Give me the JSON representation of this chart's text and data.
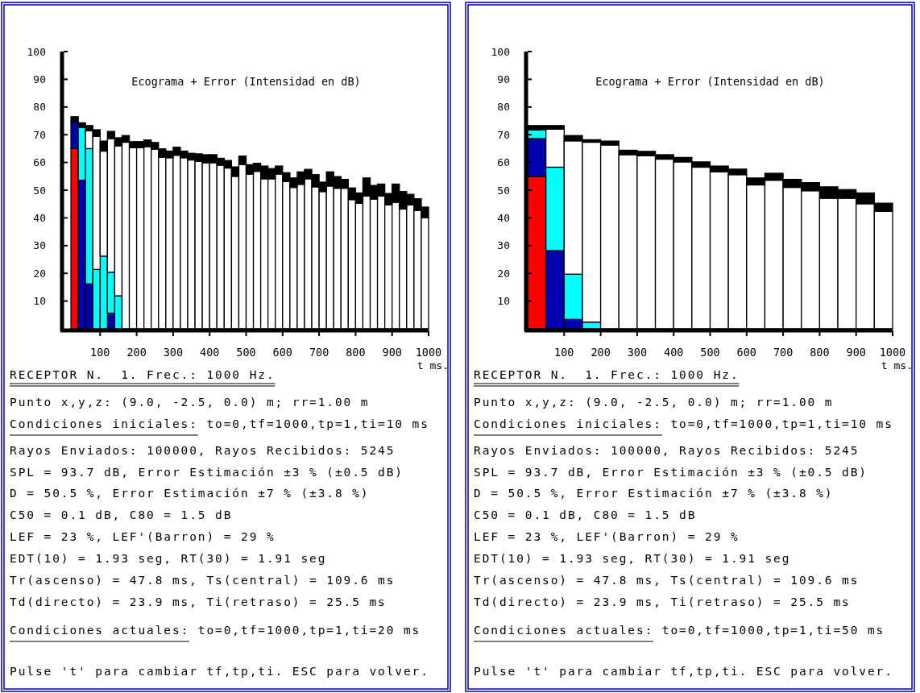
{
  "chart_data": [
    {
      "type": "bar",
      "title": "Ecograma + Error (Intensidad en dB)",
      "xlabel": "t ms.",
      "stacked": true,
      "x": [
        30,
        50,
        70,
        90,
        110,
        130,
        150,
        170,
        190,
        210,
        230,
        250,
        270,
        290,
        310,
        330,
        350,
        370,
        390,
        410,
        430,
        450,
        470,
        490,
        510,
        530,
        550,
        570,
        590,
        610,
        630,
        650,
        670,
        690,
        710,
        730,
        750,
        770,
        790,
        810,
        830,
        850,
        870,
        890,
        910,
        930,
        950,
        970,
        990
      ],
      "xlim": [
        0,
        1000
      ],
      "xticks": [
        100,
        200,
        300,
        400,
        500,
        600,
        700,
        800,
        900,
        1000
      ],
      "ylim": [
        0,
        100
      ],
      "yticks": [
        10,
        20,
        30,
        40,
        50,
        60,
        70,
        80,
        90,
        100
      ],
      "series": [
        {
          "color": "#ff0000",
          "values": [
            65.0,
            null,
            null,
            null,
            null,
            null,
            null,
            null,
            null,
            null,
            null,
            null,
            null,
            null,
            null,
            null,
            null,
            null,
            null,
            null,
            null,
            null,
            null,
            null,
            null,
            null,
            null,
            null,
            null,
            null,
            null,
            null,
            null,
            null,
            null,
            null,
            null,
            null,
            null,
            null,
            null,
            null,
            null,
            null,
            null,
            null,
            null,
            null,
            null
          ]
        },
        {
          "color": "#0000b0",
          "values": [
            9.6,
            53.6,
            16.2,
            null,
            null,
            5.6,
            null,
            null,
            null,
            null,
            null,
            null,
            null,
            null,
            null,
            null,
            null,
            null,
            null,
            null,
            null,
            null,
            null,
            null,
            null,
            null,
            null,
            null,
            null,
            null,
            null,
            null,
            null,
            null,
            null,
            null,
            null,
            null,
            null,
            null,
            null,
            null,
            null,
            null,
            null,
            null,
            null,
            null,
            null
          ]
        },
        {
          "color": "#00ffff",
          "values": [
            null,
            19.0,
            48.8,
            21.4,
            26.2,
            14.8,
            11.9,
            null,
            null,
            null,
            null,
            null,
            null,
            null,
            null,
            null,
            null,
            null,
            null,
            null,
            null,
            null,
            null,
            null,
            null,
            null,
            null,
            null,
            null,
            null,
            null,
            null,
            null,
            null,
            null,
            null,
            null,
            null,
            null,
            null,
            null,
            null,
            null,
            null,
            null,
            null,
            null,
            null,
            null
          ]
        },
        {
          "color": "#ffffff",
          "values": [
            null,
            null,
            6.4,
            48.0,
            37.9,
            48.2,
            54.1,
            67.3,
            65.3,
            65.3,
            65.7,
            64.8,
            61.9,
            61.7,
            62.6,
            61.7,
            60.9,
            60.4,
            59.9,
            59.9,
            59.0,
            58.0,
            55.0,
            59.2,
            55.8,
            56.8,
            54.1,
            54.1,
            55.8,
            53.1,
            51.0,
            52.1,
            54.1,
            51.2,
            49.5,
            51.5,
            50.7,
            50.7,
            46.6,
            45.3,
            47.9,
            46.8,
            47.9,
            44.7,
            45.6,
            43.2,
            44.7,
            42.7,
            40.1
          ]
        },
        {
          "color": "#000000",
          "values": [
            1.9,
            1.7,
            1.9,
            2.4,
            3.6,
            2.6,
            2.9,
            2.4,
            2.2,
            2.2,
            2.4,
            2.4,
            3.0,
            2.4,
            2.9,
            2.4,
            2.4,
            2.7,
            2.9,
            2.9,
            2.5,
            2.7,
            3.4,
            3.1,
            3.4,
            2.9,
            4.6,
            3.7,
            2.9,
            3.2,
            3.4,
            4.5,
            3.4,
            4.4,
            3.4,
            5.1,
            4.2,
            3.2,
            4.2,
            3.7,
            6.5,
            4.9,
            4.3,
            4.1,
            6.6,
            6.3,
            3.8,
            4.2,
            3.8
          ]
        }
      ],
      "annotations": [
        "RECEPTOR N.  1. Frec.: 1000 Hz.",
        "Punto x,y,z: (9.0, -2.5, 0.0) m; rr=1.00 m",
        "Condiciones iniciales: to=0,tf=1000,tp=1,ti=10 ms",
        "Rayos Enviados: 100000, Rayos Recibidos: 5245",
        "SPL = 93.7 dB, Error Estimación ±3 % (±0.5 dB)",
        "D = 50.5 %, Error Estimación ±7 % (±3.8 %)",
        "C50 = 0.1 dB, C80 = 1.5 dB",
        "LEF = 23 %, LEF'(Barron) = 29 %",
        "EDT(10) = 1.93 seg, RT(30) = 1.91 seg",
        "Tr(ascenso) = 47.8 ms, Ts(central) = 109.6 ms",
        "Td(directo) = 23.9 ms, Ti(retraso) = 25.5 ms",
        "Condiciones actuales: to=0,tf=1000,tp=1,ti=20 ms",
        "Pulse 't' para cambiar tf,tp,ti. ESC para volver."
      ]
    },
    {
      "type": "bar",
      "title": "Ecograma + Error (Intensidad en dB)",
      "xlabel": "t ms.",
      "stacked": true,
      "x": [
        25,
        75,
        125,
        175,
        225,
        275,
        325,
        375,
        425,
        475,
        525,
        575,
        625,
        675,
        725,
        775,
        825,
        875,
        925,
        975
      ],
      "xlim": [
        0,
        1000
      ],
      "xticks": [
        100,
        200,
        300,
        400,
        500,
        600,
        700,
        800,
        900,
        1000
      ],
      "ylim": [
        0,
        100
      ],
      "yticks": [
        10,
        20,
        30,
        40,
        50,
        60,
        70,
        80,
        90,
        100
      ],
      "series": [
        {
          "color": "#ff0000",
          "values": [
            55.0,
            null,
            null,
            null,
            null,
            null,
            null,
            null,
            null,
            null,
            null,
            null,
            null,
            null,
            null,
            null,
            null,
            null,
            null,
            null
          ]
        },
        {
          "color": "#0000b0",
          "values": [
            13.6,
            28.2,
            3.4,
            null,
            null,
            null,
            null,
            null,
            null,
            null,
            null,
            null,
            null,
            null,
            null,
            null,
            null,
            null,
            null,
            null
          ]
        },
        {
          "color": "#00ffff",
          "values": [
            3.2,
            30.1,
            16.3,
            2.4,
            null,
            null,
            null,
            null,
            null,
            null,
            null,
            null,
            null,
            null,
            null,
            null,
            null,
            null,
            null,
            null
          ]
        },
        {
          "color": "#ffffff",
          "values": [
            null,
            13.7,
            48.1,
            64.9,
            66.3,
            62.8,
            62.4,
            61.2,
            60.2,
            58.3,
            56.6,
            55.6,
            51.9,
            53.6,
            51.0,
            49.8,
            47.1,
            47.1,
            45.1,
            42.4
          ]
        },
        {
          "color": "#000000",
          "values": [
            1.5,
            1.3,
            1.9,
            0.9,
            1.4,
            1.6,
            1.6,
            1.6,
            1.6,
            1.9,
            2.1,
            2.0,
            2.5,
            2.5,
            2.9,
            2.9,
            4.1,
            3.1,
            3.9,
            2.9
          ]
        }
      ],
      "annotations": [
        "RECEPTOR N.  1. Frec.: 1000 Hz.",
        "Punto x,y,z: (9.0, -2.5, 0.0) m; rr=1.00 m",
        "Condiciones iniciales: to=0,tf=1000,tp=1,ti=10 ms",
        "Rayos Enviados: 100000, Rayos Recibidos: 5245",
        "SPL = 93.7 dB, Error Estimación ±3 % (±0.5 dB)",
        "D = 50.5 %, Error Estimación ±7 % (±3.8 %)",
        "C50 = 0.1 dB, C80 = 1.5 dB",
        "LEF = 23 %, LEF'(Barron) = 29 %",
        "EDT(10) = 1.93 seg, RT(30) = 1.91 seg",
        "Tr(ascenso) = 47.8 ms, Ts(central) = 109.6 ms",
        "Td(directo) = 23.9 ms, Ti(retraso) = 25.5 ms",
        "Condiciones actuales: to=0,tf=1000,tp=1,ti=50 ms",
        "Pulse 't' para cambiar tf,tp,ti. ESC para volver."
      ]
    }
  ]
}
